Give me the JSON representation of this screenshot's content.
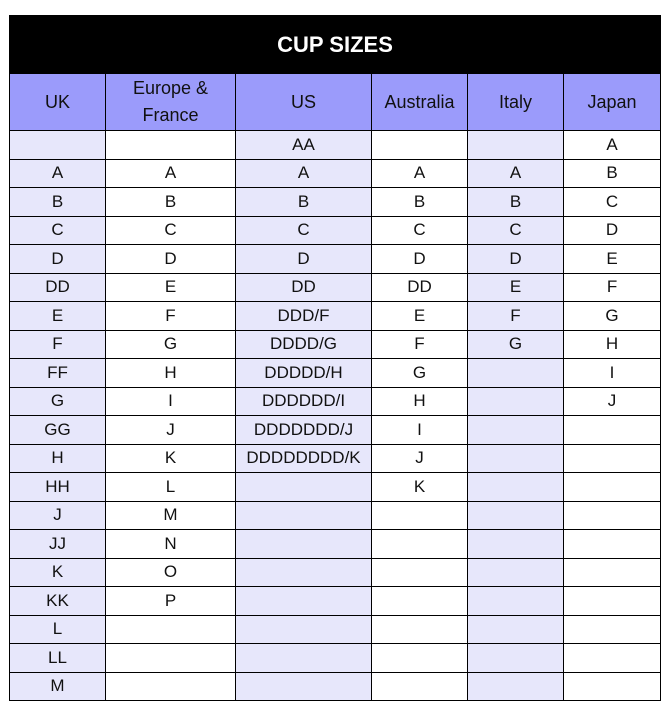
{
  "title": "CUP SIZES",
  "columns": [
    "UK",
    "Europe & France",
    "US",
    "Australia",
    "Italy",
    "Japan"
  ],
  "rows": [
    [
      "",
      "",
      "AA",
      "",
      "",
      "A"
    ],
    [
      "A",
      "A",
      "A",
      "A",
      "A",
      "B"
    ],
    [
      "B",
      "B",
      "B",
      "B",
      "B",
      "C"
    ],
    [
      "C",
      "C",
      "C",
      "C",
      "C",
      "D"
    ],
    [
      "D",
      "D",
      "D",
      "D",
      "D",
      "E"
    ],
    [
      "DD",
      "E",
      "DD",
      "DD",
      "E",
      "F"
    ],
    [
      "E",
      "F",
      "DDD/F",
      "E",
      "F",
      "G"
    ],
    [
      "F",
      "G",
      "DDDD/G",
      "F",
      "G",
      "H"
    ],
    [
      "FF",
      "H",
      "DDDDD/H",
      "G",
      "",
      "I"
    ],
    [
      "G",
      "I",
      "DDDDDD/I",
      "H",
      "",
      "J"
    ],
    [
      "GG",
      "J",
      "DDDDDDD/J",
      "I",
      "",
      ""
    ],
    [
      "H",
      "K",
      "DDDDDDDD/K",
      "J",
      "",
      ""
    ],
    [
      "HH",
      "L",
      "",
      "K",
      "",
      ""
    ],
    [
      "J",
      "M",
      "",
      "",
      "",
      ""
    ],
    [
      "JJ",
      "N",
      "",
      "",
      "",
      ""
    ],
    [
      "K",
      "O",
      "",
      "",
      "",
      ""
    ],
    [
      "KK",
      "P",
      "",
      "",
      "",
      ""
    ],
    [
      "L",
      "",
      "",
      "",
      "",
      ""
    ],
    [
      "LL",
      "",
      "",
      "",
      "",
      ""
    ],
    [
      "M",
      "",
      "",
      "",
      "",
      ""
    ]
  ],
  "colors": {
    "title_bg": "#000000",
    "header_bg": "#9b9bfb",
    "alt_column_bg": "#e7e7fb"
  }
}
